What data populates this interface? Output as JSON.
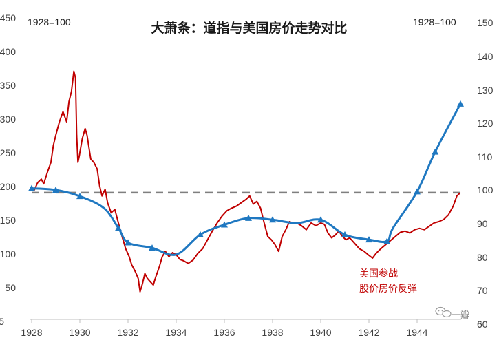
{
  "chart_data": {
    "type": "line",
    "title": "大萧条：道指与美国房价走势对比",
    "left_axis_note": "1928=100",
    "right_axis_note": "1928=100",
    "left_axis": {
      "range": [
        5,
        450
      ],
      "ticks": [
        "450",
        "400",
        "350",
        "300",
        "250",
        "200",
        "150",
        "100",
        "50",
        "5"
      ]
    },
    "right_axis": {
      "range": [
        60,
        150
      ],
      "ticks": [
        "150",
        "140",
        "130",
        "120",
        "110",
        "100",
        "90",
        "80",
        "70",
        "60"
      ]
    },
    "x_axis": {
      "range": [
        1928,
        1946
      ],
      "ticks": [
        "1928",
        "1930",
        "1932",
        "1934",
        "1936",
        "1938",
        "1940",
        "1942",
        "1944"
      ]
    },
    "reference_line": {
      "axis": "left",
      "value": 195,
      "style": "dashed"
    },
    "series": [
      {
        "axis": "left",
        "color": "#c00000",
        "points": [
          [
            1928.0,
            200
          ],
          [
            1928.1,
            198
          ],
          [
            1928.25,
            210
          ],
          [
            1928.4,
            215
          ],
          [
            1928.5,
            208
          ],
          [
            1928.65,
            225
          ],
          [
            1928.8,
            240
          ],
          [
            1928.9,
            265
          ],
          [
            1929.0,
            280
          ],
          [
            1929.15,
            300
          ],
          [
            1929.3,
            315
          ],
          [
            1929.45,
            300
          ],
          [
            1929.55,
            330
          ],
          [
            1929.65,
            345
          ],
          [
            1929.75,
            375
          ],
          [
            1929.82,
            365
          ],
          [
            1929.87,
            280
          ],
          [
            1929.92,
            240
          ],
          [
            1929.98,
            250
          ],
          [
            1930.1,
            275
          ],
          [
            1930.22,
            290
          ],
          [
            1930.3,
            280
          ],
          [
            1930.45,
            245
          ],
          [
            1930.58,
            240
          ],
          [
            1930.72,
            230
          ],
          [
            1930.82,
            205
          ],
          [
            1930.92,
            190
          ],
          [
            1931.05,
            200
          ],
          [
            1931.15,
            180
          ],
          [
            1931.3,
            165
          ],
          [
            1931.45,
            170
          ],
          [
            1931.6,
            150
          ],
          [
            1931.75,
            130
          ],
          [
            1931.9,
            112
          ],
          [
            1932.05,
            100
          ],
          [
            1932.15,
            88
          ],
          [
            1932.3,
            78
          ],
          [
            1932.42,
            68
          ],
          [
            1932.5,
            48
          ],
          [
            1932.6,
            60
          ],
          [
            1932.7,
            75
          ],
          [
            1932.8,
            68
          ],
          [
            1932.92,
            63
          ],
          [
            1933.05,
            58
          ],
          [
            1933.15,
            70
          ],
          [
            1933.3,
            85
          ],
          [
            1933.42,
            100
          ],
          [
            1933.55,
            108
          ],
          [
            1933.7,
            100
          ],
          [
            1933.85,
            106
          ],
          [
            1934.0,
            103
          ],
          [
            1934.15,
            96
          ],
          [
            1934.3,
            94
          ],
          [
            1934.5,
            90
          ],
          [
            1934.7,
            95
          ],
          [
            1934.9,
            105
          ],
          [
            1935.1,
            112
          ],
          [
            1935.3,
            125
          ],
          [
            1935.5,
            138
          ],
          [
            1935.7,
            150
          ],
          [
            1935.9,
            160
          ],
          [
            1936.1,
            168
          ],
          [
            1936.3,
            172
          ],
          [
            1936.5,
            175
          ],
          [
            1936.7,
            180
          ],
          [
            1936.9,
            185
          ],
          [
            1937.05,
            190
          ],
          [
            1937.2,
            178
          ],
          [
            1937.35,
            182
          ],
          [
            1937.5,
            172
          ],
          [
            1937.65,
            150
          ],
          [
            1937.8,
            130
          ],
          [
            1937.95,
            125
          ],
          [
            1938.1,
            118
          ],
          [
            1938.25,
            108
          ],
          [
            1938.4,
            130
          ],
          [
            1938.55,
            140
          ],
          [
            1938.7,
            152
          ],
          [
            1938.85,
            150
          ],
          [
            1939.0,
            150
          ],
          [
            1939.2,
            146
          ],
          [
            1939.4,
            140
          ],
          [
            1939.6,
            150
          ],
          [
            1939.8,
            146
          ],
          [
            1940.0,
            150
          ],
          [
            1940.15,
            148
          ],
          [
            1940.3,
            135
          ],
          [
            1940.45,
            128
          ],
          [
            1940.6,
            132
          ],
          [
            1940.75,
            138
          ],
          [
            1940.9,
            130
          ],
          [
            1941.05,
            125
          ],
          [
            1941.2,
            128
          ],
          [
            1941.4,
            120
          ],
          [
            1941.6,
            112
          ],
          [
            1941.8,
            108
          ],
          [
            1942.0,
            102
          ],
          [
            1942.15,
            98
          ],
          [
            1942.3,
            105
          ],
          [
            1942.5,
            112
          ],
          [
            1942.7,
            118
          ],
          [
            1942.9,
            124
          ],
          [
            1943.1,
            130
          ],
          [
            1943.3,
            136
          ],
          [
            1943.5,
            138
          ],
          [
            1943.7,
            135
          ],
          [
            1943.9,
            140
          ],
          [
            1944.1,
            142
          ],
          [
            1944.3,
            140
          ],
          [
            1944.5,
            145
          ],
          [
            1944.7,
            150
          ],
          [
            1944.9,
            152
          ],
          [
            1945.1,
            155
          ],
          [
            1945.3,
            162
          ],
          [
            1945.5,
            175
          ],
          [
            1945.65,
            190
          ],
          [
            1945.8,
            195
          ]
        ]
      },
      {
        "axis": "right",
        "color": "#1f78c1",
        "marker": "triangle",
        "points": [
          [
            1928,
            100
          ],
          [
            1929,
            99.5
          ],
          [
            1930,
            97.6
          ],
          [
            1931,
            94
          ],
          [
            1931.6,
            88
          ],
          [
            1932,
            83.6
          ],
          [
            1933,
            82
          ],
          [
            1934,
            80
          ],
          [
            1935,
            86
          ],
          [
            1936,
            89
          ],
          [
            1937,
            91
          ],
          [
            1938,
            90.5
          ],
          [
            1939,
            89.5
          ],
          [
            1940,
            90.5
          ],
          [
            1941,
            86
          ],
          [
            1942,
            84.5
          ],
          [
            1942.75,
            84
          ],
          [
            1943,
            88
          ],
          [
            1944,
            99
          ],
          [
            1944.75,
            111
          ],
          [
            1945.8,
            125.5
          ]
        ]
      }
    ],
    "annotations": [
      {
        "text": "美国参战",
        "x": 1942.3,
        "y": 66
      },
      {
        "text": "股价房价反弹",
        "x": 1942.3,
        "y": 42
      }
    ]
  },
  "watermark": {
    "brand": "一瓣"
  }
}
